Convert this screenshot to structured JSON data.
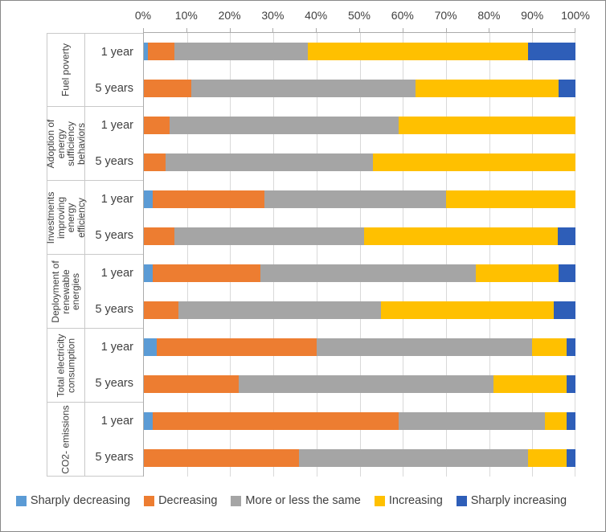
{
  "chart_data": {
    "type": "bar",
    "variant": "horizontal-stacked-100percent",
    "title": "",
    "xlabel": "",
    "ylabel": "",
    "x_axis": {
      "min": 0,
      "max": 100,
      "tick_labels": [
        "0%",
        "10%",
        "20%",
        "30%",
        "40%",
        "50%",
        "60%",
        "70%",
        "80%",
        "90%",
        "100%"
      ],
      "grid": true,
      "position": "top"
    },
    "legend_position": "bottom",
    "series": [
      {
        "name": "Sharply decreasing",
        "color": "#5B9BD5"
      },
      {
        "name": "Decreasing",
        "color": "#ED7D31"
      },
      {
        "name": "More or less the same",
        "color": "#A5A5A5"
      },
      {
        "name": "Increasing",
        "color": "#FFC000"
      },
      {
        "name": "Sharply increasing",
        "color": "#2E5EB8"
      }
    ],
    "groups": [
      {
        "label": "Fuel poverty",
        "rows": [
          {
            "label": "1 year",
            "values": [
              1,
              6,
              31,
              51,
              11
            ]
          },
          {
            "label": "5 years",
            "values": [
              0,
              11,
              52,
              33,
              4
            ]
          }
        ]
      },
      {
        "label": "Adoption of energy sufficiency behaviors",
        "rows": [
          {
            "label": "1 year",
            "values": [
              0,
              6,
              53,
              41,
              0
            ]
          },
          {
            "label": "5 years",
            "values": [
              0,
              5,
              48,
              47,
              0
            ]
          }
        ]
      },
      {
        "label": "Investments improving energy efficiency",
        "rows": [
          {
            "label": "1 year",
            "values": [
              2,
              26,
              42,
              30,
              0
            ]
          },
          {
            "label": "5 years",
            "values": [
              0,
              7,
              44,
              45,
              4
            ]
          }
        ]
      },
      {
        "label": "Deployment of renewable energies",
        "rows": [
          {
            "label": "1 year",
            "values": [
              2,
              25,
              50,
              19,
              4
            ]
          },
          {
            "label": "5 years",
            "values": [
              0,
              8,
              47,
              40,
              5
            ]
          }
        ]
      },
      {
        "label": "Total electricity consumption",
        "rows": [
          {
            "label": "1 year",
            "values": [
              3,
              37,
              50,
              8,
              2
            ]
          },
          {
            "label": "5 years",
            "values": [
              0,
              22,
              59,
              17,
              2
            ]
          }
        ]
      },
      {
        "label": "CO2- emissions",
        "rows": [
          {
            "label": "1 year",
            "values": [
              2,
              57,
              34,
              5,
              2
            ]
          },
          {
            "label": "5 years",
            "values": [
              0,
              36,
              53,
              9,
              2
            ]
          }
        ]
      }
    ]
  }
}
